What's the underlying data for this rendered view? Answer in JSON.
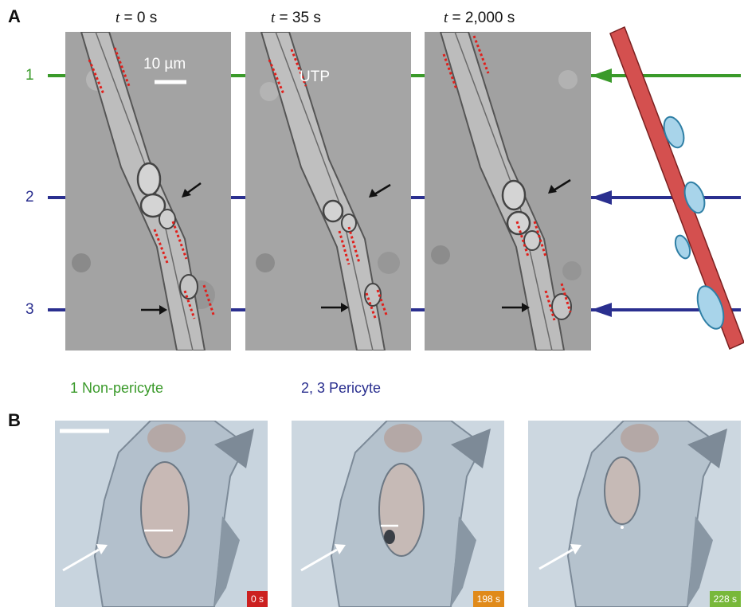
{
  "panel_a": {
    "letter": "A",
    "time_labels": [
      {
        "var": "t",
        "rest": " = 0 s"
      },
      {
        "var": "t",
        "rest": " = 35 s"
      },
      {
        "var": "t",
        "rest": " = 2,000 s"
      }
    ],
    "scale_bar_label": "10 µm",
    "stimulus_label": "UTP",
    "row_numbers": [
      "1",
      "2",
      "3"
    ],
    "legend_non_pericyte": "1  Non-pericyte",
    "legend_pericyte": "2, 3  Pericyte",
    "colors": {
      "non_pericyte": "#3a9a2a",
      "pericyte": "#2a2f8f",
      "vessel": "#d4504f",
      "cell": "#a8d4ea",
      "dotted_marker": "#e0201c"
    }
  },
  "panel_b": {
    "letter": "B",
    "timestamps": [
      {
        "label": "0 s",
        "color": "#cc2020"
      },
      {
        "label": "198 s",
        "color": "#e08a1a"
      },
      {
        "label": "228 s",
        "color": "#78b83a"
      }
    ]
  }
}
